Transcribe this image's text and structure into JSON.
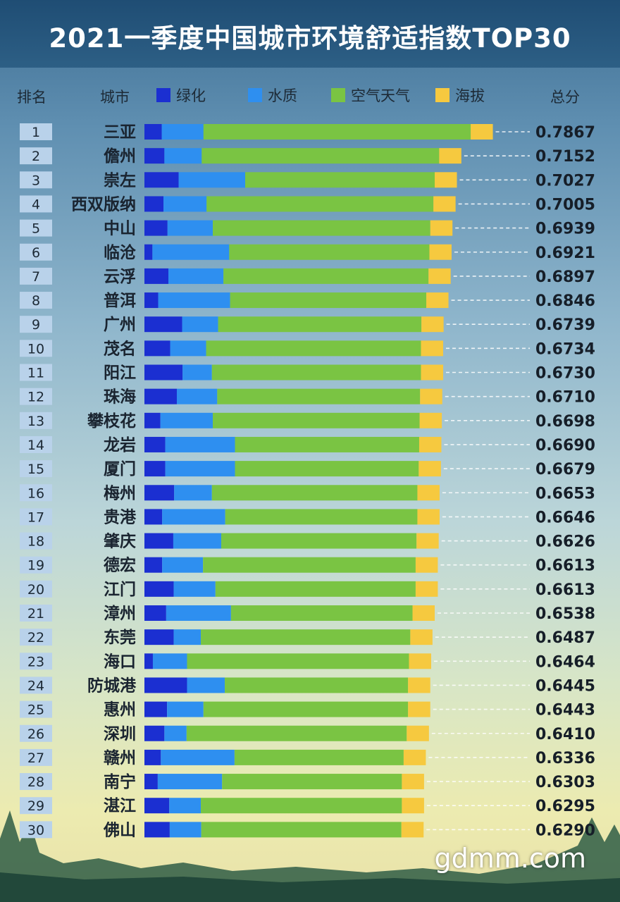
{
  "title": "2021一季度中国城市环境舒适指数TOP30",
  "header": {
    "rank_label": "排名",
    "city_label": "城市",
    "total_label": "总分"
  },
  "watermark": "gdmm.com",
  "colors": {
    "greening": "#1b2fd1",
    "water": "#2e8ff0",
    "air_weather": "#7ac443",
    "altitude": "#f6c93f",
    "rank_box": "#b9d2ea"
  },
  "chart_data": {
    "type": "bar",
    "stacked": true,
    "orientation": "horizontal",
    "title": "2021一季度中国城市环境舒适指数TOP30",
    "legend": [
      "绿化",
      "水质",
      "空气天气",
      "海拔"
    ],
    "legend_position": "top",
    "rows": [
      {
        "rank": "1",
        "city": "三亚",
        "total": "0.7867",
        "segments": [
          0.039,
          0.094,
          0.602,
          0.05
        ]
      },
      {
        "rank": "2",
        "city": "儋州",
        "total": "0.7152",
        "segments": [
          0.045,
          0.084,
          0.535,
          0.05
        ]
      },
      {
        "rank": "3",
        "city": "崇左",
        "total": "0.7027",
        "segments": [
          0.077,
          0.15,
          0.427,
          0.05
        ]
      },
      {
        "rank": "4",
        "city": "西双版纳",
        "total": "0.7005",
        "segments": [
          0.043,
          0.097,
          0.511,
          0.05
        ]
      },
      {
        "rank": "5",
        "city": "中山",
        "total": "0.6939",
        "segments": [
          0.052,
          0.102,
          0.49,
          0.05
        ]
      },
      {
        "rank": "6",
        "city": "临沧",
        "total": "0.6921",
        "segments": [
          0.018,
          0.173,
          0.451,
          0.05
        ]
      },
      {
        "rank": "7",
        "city": "云浮",
        "total": "0.6897",
        "segments": [
          0.054,
          0.124,
          0.462,
          0.05
        ]
      },
      {
        "rank": "8",
        "city": "普洱",
        "total": "0.6846",
        "segments": [
          0.031,
          0.162,
          0.442,
          0.05
        ]
      },
      {
        "rank": "9",
        "city": "广州",
        "total": "0.6739",
        "segments": [
          0.085,
          0.081,
          0.458,
          0.05
        ]
      },
      {
        "rank": "10",
        "city": "茂名",
        "total": "0.6734",
        "segments": [
          0.058,
          0.081,
          0.484,
          0.05
        ]
      },
      {
        "rank": "11",
        "city": "阳江",
        "total": "0.6730",
        "segments": [
          0.086,
          0.066,
          0.471,
          0.05
        ]
      },
      {
        "rank": "12",
        "city": "珠海",
        "total": "0.6710",
        "segments": [
          0.073,
          0.091,
          0.457,
          0.05
        ]
      },
      {
        "rank": "13",
        "city": "攀枝花",
        "total": "0.6698",
        "segments": [
          0.036,
          0.118,
          0.466,
          0.05
        ]
      },
      {
        "rank": "14",
        "city": "龙岩",
        "total": "0.6690",
        "segments": [
          0.047,
          0.157,
          0.415,
          0.05
        ]
      },
      {
        "rank": "15",
        "city": "厦门",
        "total": "0.6679",
        "segments": [
          0.047,
          0.157,
          0.414,
          0.05
        ]
      },
      {
        "rank": "16",
        "city": "梅州",
        "total": "0.6653",
        "segments": [
          0.067,
          0.085,
          0.463,
          0.05
        ]
      },
      {
        "rank": "17",
        "city": "贵港",
        "total": "0.6646",
        "segments": [
          0.04,
          0.142,
          0.433,
          0.05
        ]
      },
      {
        "rank": "18",
        "city": "肇庆",
        "total": "0.6626",
        "segments": [
          0.065,
          0.108,
          0.44,
          0.05
        ]
      },
      {
        "rank": "19",
        "city": "德宏",
        "total": "0.6613",
        "segments": [
          0.04,
          0.092,
          0.479,
          0.05
        ]
      },
      {
        "rank": "20",
        "city": "江门",
        "total": "0.6613",
        "segments": [
          0.066,
          0.094,
          0.451,
          0.05
        ]
      },
      {
        "rank": "21",
        "city": "漳州",
        "total": "0.6538",
        "segments": [
          0.049,
          0.146,
          0.409,
          0.05
        ]
      },
      {
        "rank": "22",
        "city": "东莞",
        "total": "0.6487",
        "segments": [
          0.066,
          0.061,
          0.472,
          0.05
        ]
      },
      {
        "rank": "23",
        "city": "海口",
        "total": "0.6464",
        "segments": [
          0.019,
          0.077,
          0.5,
          0.05
        ]
      },
      {
        "rank": "24",
        "city": "防城港",
        "total": "0.6445",
        "segments": [
          0.096,
          0.085,
          0.413,
          0.05
        ]
      },
      {
        "rank": "25",
        "city": "惠州",
        "total": "0.6443",
        "segments": [
          0.051,
          0.082,
          0.461,
          0.05
        ]
      },
      {
        "rank": "26",
        "city": "深圳",
        "total": "0.6410",
        "segments": [
          0.045,
          0.05,
          0.496,
          0.05
        ]
      },
      {
        "rank": "27",
        "city": "赣州",
        "total": "0.6336",
        "segments": [
          0.037,
          0.166,
          0.381,
          0.05
        ]
      },
      {
        "rank": "28",
        "city": "南宁",
        "total": "0.6303",
        "segments": [
          0.03,
          0.145,
          0.405,
          0.05
        ]
      },
      {
        "rank": "29",
        "city": "湛江",
        "total": "0.6295",
        "segments": [
          0.056,
          0.071,
          0.453,
          0.05
        ]
      },
      {
        "rank": "30",
        "city": "佛山",
        "total": "0.6290",
        "segments": [
          0.057,
          0.071,
          0.451,
          0.05
        ]
      }
    ]
  }
}
